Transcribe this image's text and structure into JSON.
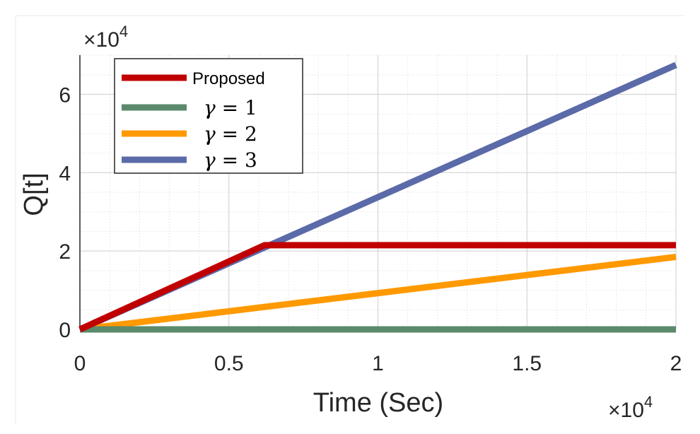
{
  "chart_data": {
    "type": "line",
    "xlabel": "Time (Sec)",
    "ylabel": "Q[t]",
    "x_multiplier": "×10^4",
    "y_multiplier": "×10^4",
    "xlim": [
      0,
      2
    ],
    "ylim": [
      0,
      7
    ],
    "x_ticks": [
      "0",
      "0.5",
      "1",
      "1.5",
      "2"
    ],
    "y_ticks": [
      "0",
      "2",
      "4",
      "6"
    ],
    "grid": true,
    "legend_position": "top-left",
    "series": [
      {
        "name": "Proposed",
        "legend_math": false,
        "color": "#c00000",
        "x": [
          0,
          0.62,
          2
        ],
        "y": [
          0,
          2.15,
          2.15
        ]
      },
      {
        "name": "γ = 1",
        "legend_math": true,
        "legend_var": "γ",
        "legend_rest": " = 1",
        "color": "#5a8a6b",
        "x": [
          0,
          2
        ],
        "y": [
          0,
          0
        ]
      },
      {
        "name": "γ = 2",
        "legend_math": true,
        "legend_var": "γ",
        "legend_rest": " = 2",
        "color": "#ff9900",
        "x": [
          0,
          2
        ],
        "y": [
          0,
          1.85
        ]
      },
      {
        "name": "γ = 3",
        "legend_math": true,
        "legend_var": "γ",
        "legend_rest": " = 3",
        "color": "#5b6aa8",
        "x": [
          0,
          2
        ],
        "y": [
          0,
          6.75
        ]
      }
    ]
  }
}
